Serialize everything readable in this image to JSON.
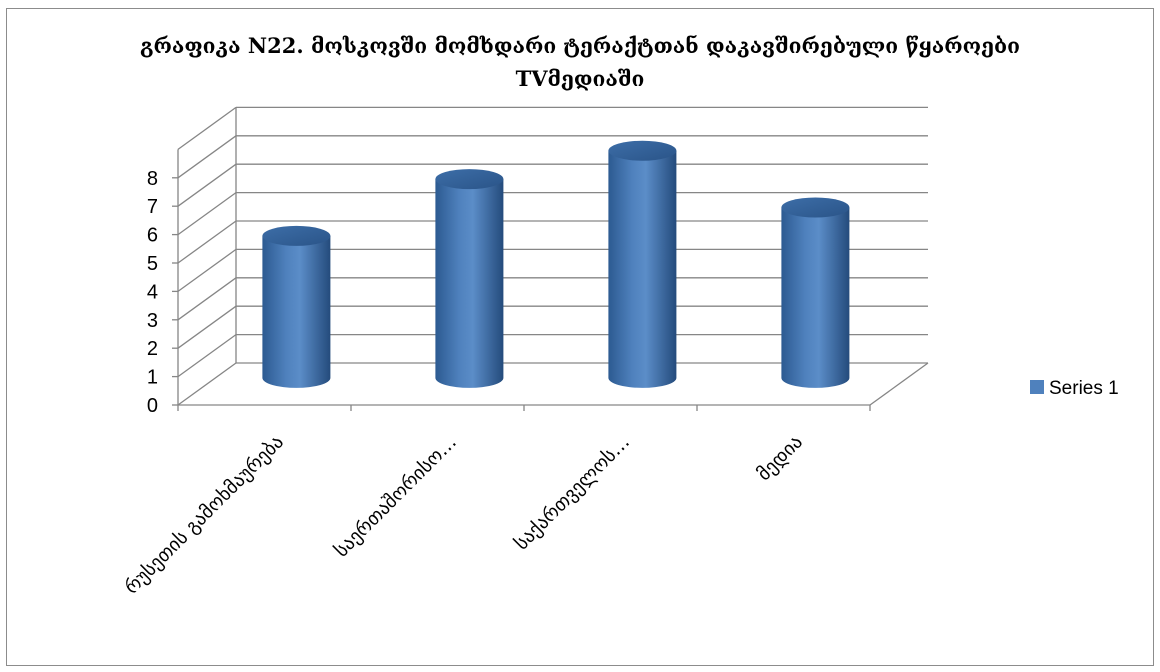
{
  "chart_data": {
    "type": "bar",
    "style": "3d-cylinder",
    "title_lines": [
      "გრაფიკა N22. მოსკოვში მომხდარი ტერაქტთან დაკავშირებული წყაროები",
      "TVმედიაში"
    ],
    "categories": [
      "რუსეთის გამოხმაურება",
      "საერთაშორისო…",
      "საქართველოს…",
      "მედია"
    ],
    "series": [
      {
        "name": "Series 1",
        "values": [
          5,
          7,
          8,
          6
        ],
        "color": "#4f81bd"
      }
    ],
    "y_ticks": [
      "0",
      "1",
      "2",
      "3",
      "4",
      "5",
      "6",
      "7",
      "8"
    ],
    "ylim": [
      0,
      8
    ],
    "grid": true,
    "legend_position": "right"
  }
}
